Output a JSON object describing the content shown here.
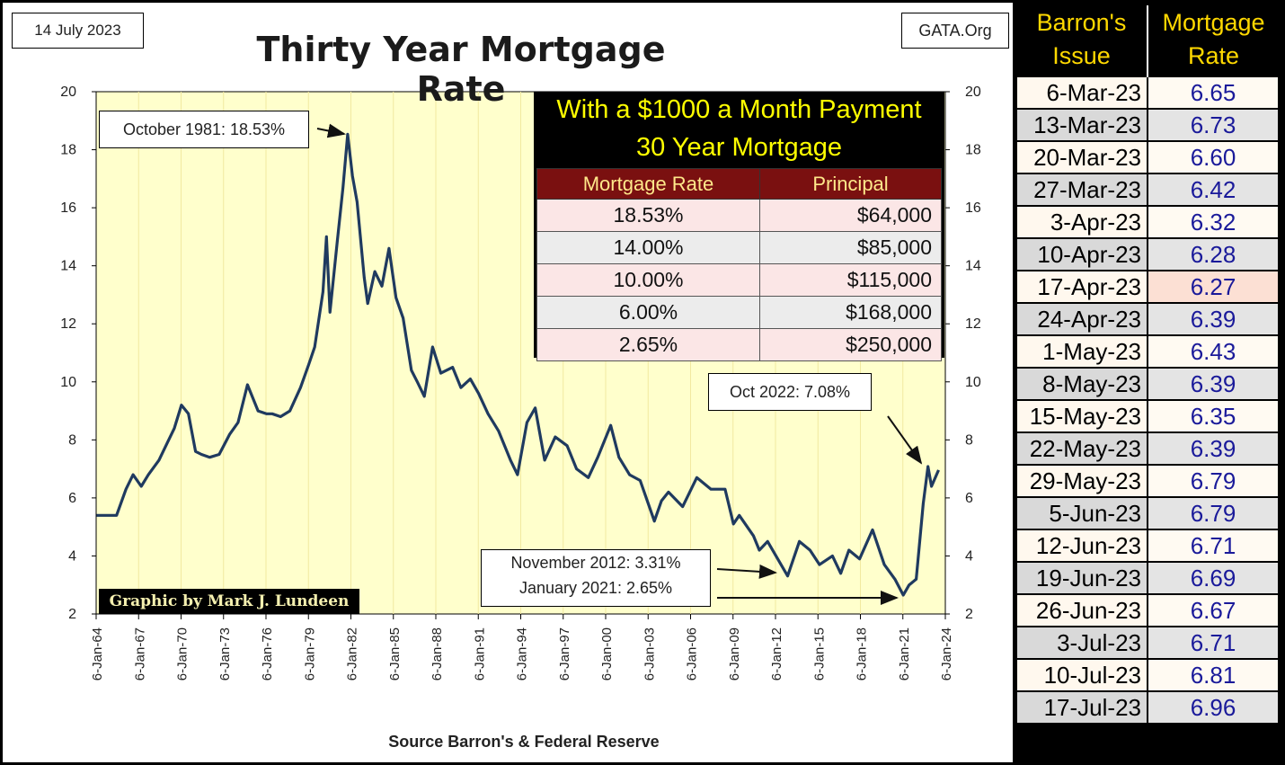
{
  "date_stamp": "14 July 2023",
  "site": "GATA.Org",
  "credit": "Graphic by Mark J. Lundeen",
  "source": "Source Barron's & Federal Reserve",
  "colors": {
    "plot_bg": "#ffffcc",
    "grid": "#f1e9a0",
    "line": "#1f3a5f",
    "rate_text": "#1a1a9a",
    "header_text": "#ffd800"
  },
  "annotations": {
    "peak": "October 1981:  18.53%",
    "recent": "Oct 2022:  7.08%",
    "low1": "November 2012:  3.31%",
    "low2": "January 2021:  2.65%"
  },
  "inset": {
    "title1": "With a $1000 a Month Payment",
    "title2": "30 Year Mortgage",
    "col1": "Mortgage Rate",
    "col2": "Principal",
    "rows": [
      {
        "rate": "18.53%",
        "principal": "$64,000"
      },
      {
        "rate": "14.00%",
        "principal": "$85,000"
      },
      {
        "rate": "10.00%",
        "principal": "$115,000"
      },
      {
        "rate": "6.00%",
        "principal": "$168,000"
      },
      {
        "rate": "2.65%",
        "principal": "$250,000"
      }
    ]
  },
  "side_table": {
    "h1": "Barron's Issue",
    "h2": "Mortgage Rate",
    "rows": [
      {
        "issue": "6-Mar-23",
        "rate": "6.65"
      },
      {
        "issue": "13-Mar-23",
        "rate": "6.73"
      },
      {
        "issue": "20-Mar-23",
        "rate": "6.60"
      },
      {
        "issue": "27-Mar-23",
        "rate": "6.42"
      },
      {
        "issue": "3-Apr-23",
        "rate": "6.32"
      },
      {
        "issue": "10-Apr-23",
        "rate": "6.28"
      },
      {
        "issue": "17-Apr-23",
        "rate": "6.27"
      },
      {
        "issue": "24-Apr-23",
        "rate": "6.39"
      },
      {
        "issue": "1-May-23",
        "rate": "6.43"
      },
      {
        "issue": "8-May-23",
        "rate": "6.39"
      },
      {
        "issue": "15-May-23",
        "rate": "6.35"
      },
      {
        "issue": "22-May-23",
        "rate": "6.39"
      },
      {
        "issue": "29-May-23",
        "rate": "6.79"
      },
      {
        "issue": "5-Jun-23",
        "rate": "6.79"
      },
      {
        "issue": "12-Jun-23",
        "rate": "6.71"
      },
      {
        "issue": "19-Jun-23",
        "rate": "6.69"
      },
      {
        "issue": "26-Jun-23",
        "rate": "6.67"
      },
      {
        "issue": "3-Jul-23",
        "rate": "6.71"
      },
      {
        "issue": "10-Jul-23",
        "rate": "6.81"
      },
      {
        "issue": "17-Jul-23",
        "rate": "6.96"
      }
    ]
  },
  "chart_data": {
    "type": "line",
    "title": "Thirty Year Mortgage Rate",
    "xlabel": "",
    "ylabel": "",
    "xlim": [
      "1964-01-06",
      "2024-01-06"
    ],
    "ylim": [
      2,
      20
    ],
    "yticks": [
      2,
      4,
      6,
      8,
      10,
      12,
      14,
      16,
      18,
      20
    ],
    "xtick_labels": [
      "6-Jan-64",
      "6-Jan-67",
      "6-Jan-70",
      "6-Jan-73",
      "6-Jan-76",
      "6-Jan-79",
      "6-Jan-82",
      "6-Jan-85",
      "6-Jan-88",
      "6-Jan-91",
      "6-Jan-94",
      "6-Jan-97",
      "6-Jan-00",
      "6-Jan-03",
      "6-Jan-06",
      "6-Jan-09",
      "6-Jan-12",
      "6-Jan-15",
      "6-Jan-18",
      "6-Jan-21",
      "6-Jan-24"
    ],
    "grid": true,
    "y_axis_both_sides": true,
    "series": [
      {
        "x": [
          "1964-01",
          "1965-06",
          "1966-02",
          "1966-08",
          "1967-03",
          "1967-09",
          "1968-06",
          "1969-01",
          "1969-07",
          "1970-01",
          "1970-07",
          "1971-01",
          "1971-06",
          "1972-01",
          "1972-09",
          "1973-06",
          "1974-01",
          "1974-09",
          "1975-06",
          "1976-01",
          "1976-06",
          "1977-01",
          "1977-09",
          "1978-06",
          "1979-01",
          "1979-06",
          "1980-01",
          "1980-04",
          "1980-07",
          "1981-01",
          "1981-06",
          "1981-10",
          "1982-02",
          "1982-06",
          "1982-12",
          "1983-03",
          "1983-09",
          "1984-03",
          "1984-09",
          "1985-03",
          "1985-09",
          "1986-04",
          "1986-09",
          "1987-03",
          "1987-10",
          "1988-05",
          "1989-03",
          "1989-10",
          "1990-06",
          "1991-01",
          "1991-09",
          "1992-06",
          "1993-04",
          "1993-10",
          "1994-06",
          "1995-01",
          "1995-09",
          "1996-06",
          "1997-04",
          "1997-12",
          "1998-10",
          "1999-06",
          "2000-05",
          "2000-12",
          "2001-09",
          "2002-06",
          "2003-06",
          "2003-12",
          "2004-06",
          "2005-06",
          "2006-06",
          "2007-06",
          "2008-06",
          "2009-01",
          "2009-06",
          "2010-06",
          "2010-11",
          "2011-06",
          "2012-11",
          "2013-09",
          "2014-06",
          "2015-02",
          "2016-01",
          "2016-08",
          "2017-03",
          "2017-12",
          "2018-11",
          "2019-09",
          "2020-06",
          "2021-01",
          "2021-06",
          "2021-12",
          "2022-06",
          "2022-10",
          "2023-01",
          "2023-07"
        ],
        "y": [
          5.4,
          5.4,
          6.3,
          6.8,
          6.4,
          6.8,
          7.3,
          7.9,
          8.4,
          9.2,
          8.9,
          7.6,
          7.5,
          7.4,
          7.5,
          8.2,
          8.6,
          9.9,
          9.0,
          8.9,
          8.9,
          8.8,
          9.0,
          9.8,
          10.6,
          11.2,
          13.1,
          15.0,
          12.4,
          14.8,
          16.7,
          18.53,
          17.1,
          16.2,
          13.6,
          12.7,
          13.8,
          13.3,
          14.6,
          12.9,
          12.2,
          10.4,
          10.0,
          9.5,
          11.2,
          10.3,
          10.5,
          9.8,
          10.1,
          9.6,
          8.9,
          8.3,
          7.3,
          6.8,
          8.6,
          9.1,
          7.3,
          8.1,
          7.8,
          7.0,
          6.7,
          7.4,
          8.5,
          7.4,
          6.8,
          6.6,
          5.2,
          5.9,
          6.2,
          5.7,
          6.7,
          6.3,
          6.3,
          5.1,
          5.4,
          4.7,
          4.2,
          4.5,
          3.31,
          4.5,
          4.2,
          3.7,
          4.0,
          3.4,
          4.2,
          3.9,
          4.9,
          3.7,
          3.2,
          2.65,
          3.0,
          3.2,
          5.8,
          7.08,
          6.4,
          6.96
        ]
      }
    ]
  }
}
